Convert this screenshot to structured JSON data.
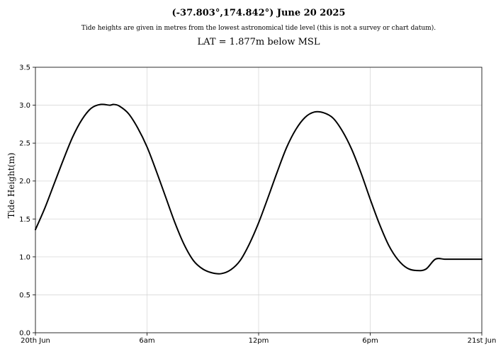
{
  "chart_data": {
    "type": "line",
    "title": "(-37.803°,174.842°) June 20 2025",
    "subtitle": "Tide heights are given in metres from the lowest astronomical tide level (this is not a survey or chart datum).",
    "subtitle2": "LAT = 1.877m below MSL",
    "xlabel": "",
    "ylabel": "Tide Height(m)",
    "ylim": [
      0,
      3.5
    ],
    "xlim": [
      0,
      24
    ],
    "grid": true,
    "y_ticks": [
      0.0,
      0.5,
      1.0,
      1.5,
      2.0,
      2.5,
      3.0,
      3.5
    ],
    "y_tick_labels": [
      "0.0",
      "0.5",
      "1.0",
      "1.5",
      "2.0",
      "2.5",
      "3.0",
      "3.5"
    ],
    "x_ticks": [
      0,
      6,
      12,
      18,
      24
    ],
    "x_tick_labels": [
      "20th Jun",
      "6am",
      "12pm",
      "6pm",
      "21st Jun"
    ],
    "colors": {
      "line": "#000000",
      "grid": "#d8d8d8"
    },
    "series": [
      {
        "x": [
          0,
          0.5,
          1,
          1.5,
          2,
          2.5,
          3,
          3.5,
          4,
          4.2,
          4.5,
          5,
          5.5,
          6,
          6.5,
          7,
          7.5,
          8,
          8.5,
          9,
          9.5,
          10,
          10.5,
          11,
          11.5,
          12,
          12.5,
          13,
          13.5,
          14,
          14.5,
          15,
          15.5,
          16,
          16.5,
          17,
          17.5,
          18,
          18.5,
          19,
          19.5,
          20,
          20.5,
          21,
          21.5,
          22,
          22.5,
          23,
          23.5,
          24
        ],
        "y": [
          1.36,
          1.64,
          1.96,
          2.28,
          2.58,
          2.81,
          2.96,
          3.01,
          3.0,
          3.01,
          2.99,
          2.89,
          2.7,
          2.45,
          2.13,
          1.79,
          1.45,
          1.16,
          0.95,
          0.84,
          0.79,
          0.78,
          0.83,
          0.95,
          1.17,
          1.45,
          1.78,
          2.12,
          2.44,
          2.68,
          2.84,
          2.91,
          2.9,
          2.83,
          2.66,
          2.42,
          2.11,
          1.76,
          1.43,
          1.15,
          0.96,
          0.85,
          0.82,
          0.84,
          0.97,
          0.97,
          0.97,
          0.97,
          0.97,
          0.97
        ]
      }
    ]
  }
}
